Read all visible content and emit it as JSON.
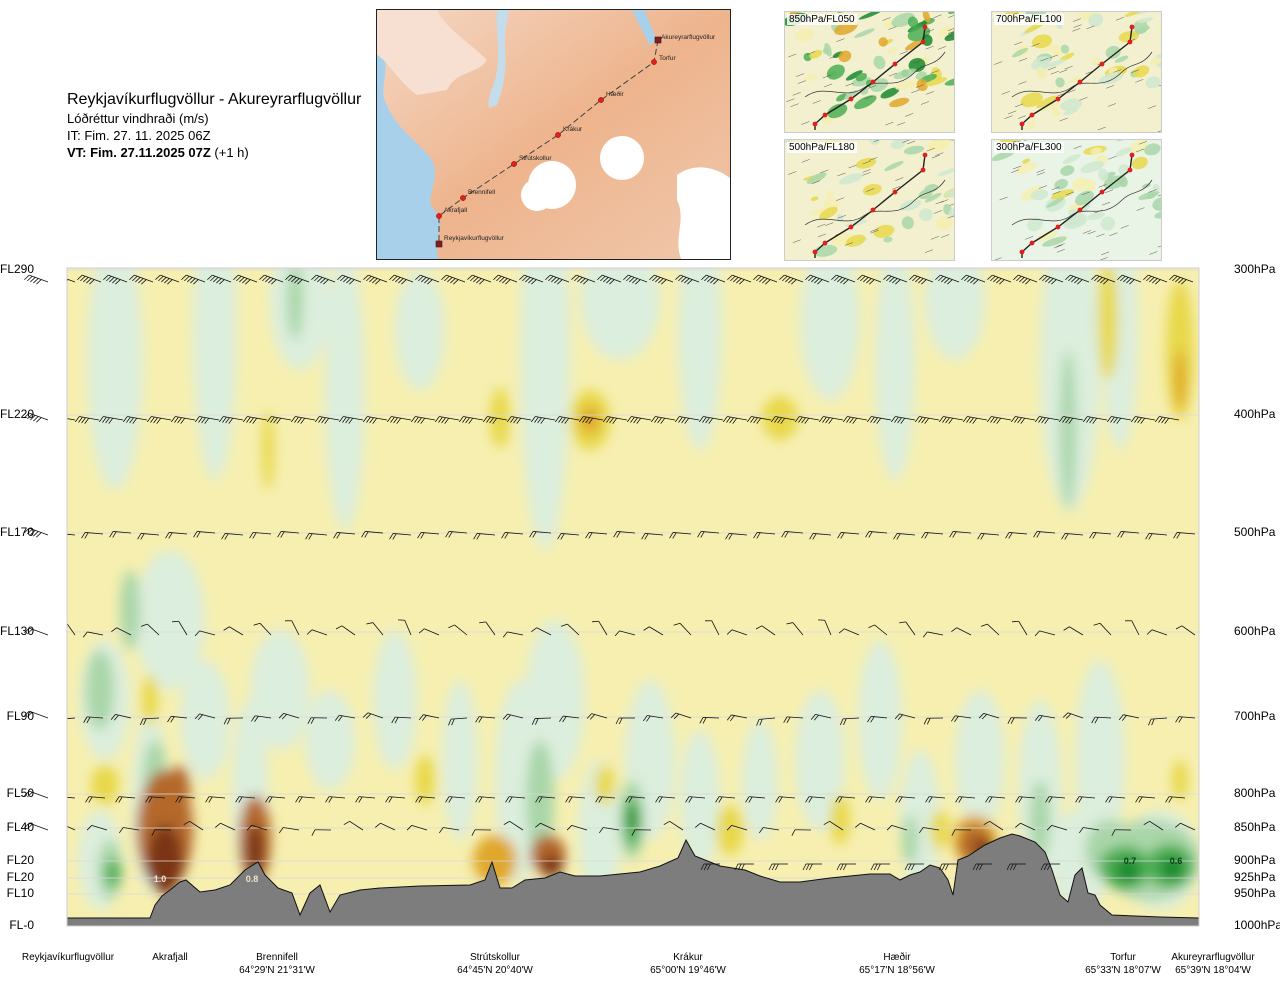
{
  "header": {
    "title": "Reykjavíkurflugvöllur - Akureyrarflugvöllur",
    "subtitle": "Lóðréttur vindhraði (m/s)",
    "it": "IT: Fim. 27. 11. 2025 06Z",
    "vt_bold": "VT: Fim. 27.11.2025 07Z",
    "vt_suffix": " (+1 h)"
  },
  "map": {
    "route_points": [
      {
        "name": "Akureyrarflugvöllur"
      },
      {
        "name": "Torfur"
      },
      {
        "name": "Hæðir"
      },
      {
        "name": "Krákur"
      },
      {
        "name": "Strútskollur"
      },
      {
        "name": "Brennifell"
      },
      {
        "name": "Akrafjall"
      },
      {
        "name": "Reykjavíkurflugvöllur"
      }
    ]
  },
  "thumbnails": [
    {
      "label": "850hPa/FL050"
    },
    {
      "label": "700hPa/FL100"
    },
    {
      "label": "500hPa/FL180"
    },
    {
      "label": "300hPa/FL300"
    }
  ],
  "chart_data": {
    "type": "heatmap",
    "title": "Reykjavíkurflugvöllur - Akureyrarflugvöllur",
    "variable": "Lóðréttur vindhraði (m/s)",
    "levels": [
      {
        "fl": "FL290",
        "hpa": "300hPa"
      },
      {
        "fl": "FL220",
        "hpa": "400hPa"
      },
      {
        "fl": "FL170",
        "hpa": "500hPa"
      },
      {
        "fl": "FL130",
        "hpa": "600hPa"
      },
      {
        "fl": "FL90",
        "hpa": "700hPa"
      },
      {
        "fl": "FL50",
        "hpa": "800hPa"
      },
      {
        "fl": "FL40",
        "hpa": "850hPa"
      },
      {
        "fl": "FL20",
        "hpa": "900hPa"
      },
      {
        "fl": "FL20",
        "hpa": "925hPa"
      },
      {
        "fl": "FL10",
        "hpa": "950hPa"
      },
      {
        "fl": "FL-0",
        "hpa": "1000hPa"
      }
    ],
    "locations": [
      {
        "name": "Reykjavíkurflugvöllur",
        "coord": ""
      },
      {
        "name": "Akrafjall",
        "coord": ""
      },
      {
        "name": "Brennifell",
        "coord": "64°29'N 21°31'W"
      },
      {
        "name": "Strútskollur",
        "coord": "64°45'N 20°40'W"
      },
      {
        "name": "Krákur",
        "coord": "65°00'N 19°46'W"
      },
      {
        "name": "Hæðir",
        "coord": "65°17'N 18°56'W"
      },
      {
        "name": "Torfur",
        "coord": "65°33'N 18°07'W"
      },
      {
        "name": "Akureyrarflugvöllur",
        "coord": "65°39'N 18°04'W"
      }
    ],
    "annotations": [
      "1.0",
      "0.8",
      "0.7",
      "0.6"
    ],
    "colors": {
      "down_light": "#dceedd",
      "down_mid": "#a9d6a9",
      "down_dark": "#4cae52",
      "down_darkest": "#17882e",
      "up_light": "#f6efb0",
      "up_mid": "#e8d84a",
      "up_strong": "#e0a72a",
      "up_darker": "#b4682a",
      "up_darkest": "#7a3414",
      "terrain": "#7d7d7d"
    }
  }
}
